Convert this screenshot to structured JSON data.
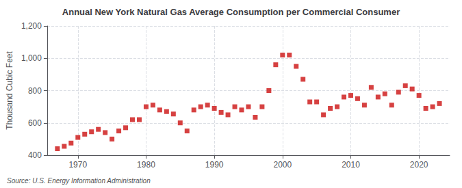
{
  "chart_data": {
    "type": "scatter",
    "title": "Annual New York Natural Gas Average Consumption per Commercial Consumer",
    "ylabel": "Thousand Cubic Feet",
    "annotation": "Source: U.S. Energy Information Administration",
    "x": [
      1967,
      1968,
      1969,
      1970,
      1971,
      1972,
      1973,
      1974,
      1975,
      1976,
      1977,
      1978,
      1979,
      1980,
      1981,
      1982,
      1983,
      1984,
      1985,
      1986,
      1987,
      1988,
      1989,
      1990,
      1991,
      1992,
      1993,
      1994,
      1995,
      1996,
      1997,
      1998,
      1999,
      2000,
      2001,
      2002,
      2003,
      2004,
      2005,
      2006,
      2007,
      2008,
      2009,
      2010,
      2011,
      2012,
      2013,
      2014,
      2015,
      2016,
      2017,
      2018,
      2019,
      2020,
      2021,
      2022,
      2023
    ],
    "values": [
      440,
      455,
      475,
      510,
      530,
      545,
      560,
      540,
      500,
      550,
      570,
      620,
      620,
      700,
      710,
      680,
      670,
      655,
      600,
      550,
      680,
      700,
      710,
      690,
      665,
      650,
      700,
      680,
      700,
      635,
      700,
      800,
      960,
      1020,
      1020,
      950,
      870,
      730,
      730,
      650,
      690,
      700,
      760,
      770,
      750,
      710,
      820,
      760,
      780,
      710,
      790,
      830,
      810,
      770,
      690,
      700,
      720
    ],
    "color": "#cc1111",
    "marker": "square",
    "xlim": [
      1965.5,
      2024.5
    ],
    "xticks": [
      1970,
      1980,
      1990,
      2000,
      2010,
      2020
    ],
    "ylim": [
      400,
      1200
    ],
    "yticks": [
      400,
      600,
      800,
      {
        "value": 1000,
        "label": "1,000"
      },
      {
        "value": 1200,
        "label": "1,200"
      }
    ],
    "grid": true
  }
}
